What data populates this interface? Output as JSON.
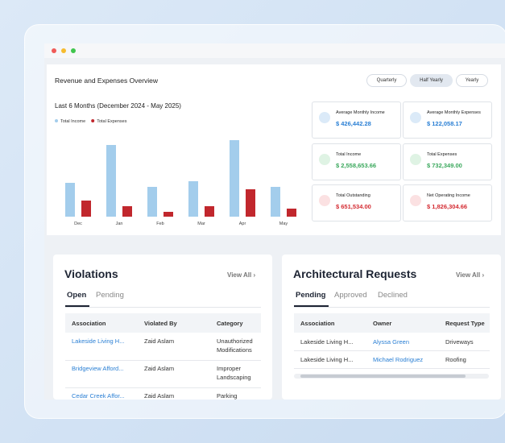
{
  "overview": {
    "title": "Revenue and Expenses Overview",
    "periods": [
      "Quarterly",
      "Half Yearly",
      "Yearly"
    ]
  },
  "chart_data": {
    "type": "bar",
    "title": "Last 6 Months (December 2024 - May 2025)",
    "categories": [
      "Dec",
      "Jan",
      "Feb",
      "Mar",
      "Apr",
      "May"
    ],
    "series": [
      {
        "name": "Total Income",
        "color": "#a3cdec",
        "values": [
          42,
          89,
          37,
          44,
          95,
          37
        ]
      },
      {
        "name": "Total Expenses",
        "color": "#c1272d",
        "values": [
          20,
          13,
          6,
          13,
          34,
          10
        ]
      }
    ],
    "ylim": [
      0,
      100
    ]
  },
  "stats": [
    {
      "label": "Average Monthly Income",
      "value": "$ 426,442.28"
    },
    {
      "label": "Average Monthly Expenses",
      "value": "$ 122,058.17"
    },
    {
      "label": "Total Income",
      "value": "$ 2,558,653.66"
    },
    {
      "label": "Total Expenses",
      "value": "$ 732,349.00"
    },
    {
      "label": "Total Outstanding",
      "value": "$ 651,534.00"
    },
    {
      "label": "Net Operating Income",
      "value": "$ 1,826,304.66"
    }
  ],
  "violations": {
    "title": "Violations",
    "view_all": "View All",
    "tabs": [
      "Open",
      "Pending"
    ],
    "columns": [
      "Association",
      "Violated By",
      "Category"
    ],
    "rows": [
      [
        "Lakeside Living H...",
        "Zaid Aslam",
        "Unauthorized Modifications"
      ],
      [
        "Bridgeview Afford...",
        "Zaid Aslam",
        "Improper Landscaping"
      ],
      [
        "Cedar Creek Affor...",
        "Zaid Aslam",
        "Parking Violation"
      ]
    ]
  },
  "architectural_requests": {
    "title": "Architectural Requests",
    "view_all": "View All",
    "tabs": [
      "Pending",
      "Approved",
      "Declined"
    ],
    "columns": [
      "Association",
      "Owner",
      "Request Type"
    ],
    "rows": [
      [
        "Lakeside Living H...",
        "Alyssa Green",
        "Driveways"
      ],
      [
        "Lakeside Living H...",
        "Michael Rodriguez",
        "Roofing"
      ]
    ]
  }
}
